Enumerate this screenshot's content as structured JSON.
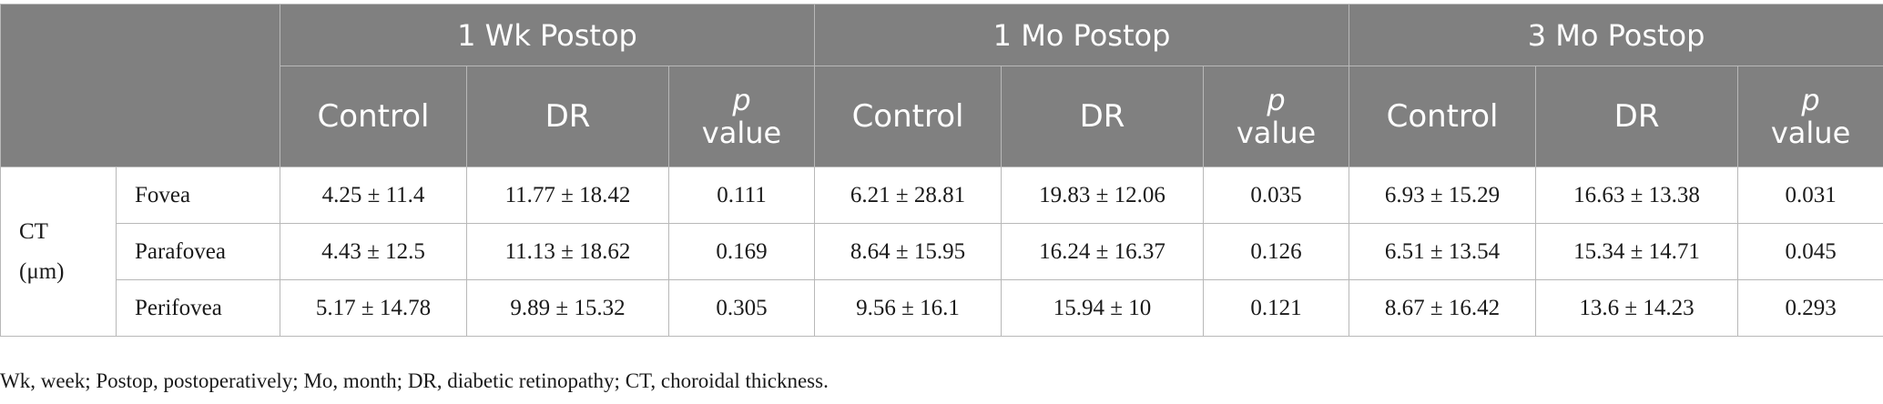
{
  "table": {
    "periods": [
      "1 Wk Postop",
      "1 Mo Postop",
      "3 Mo Postop"
    ],
    "subheaders": {
      "control": "Control",
      "dr": "DR",
      "p": "p",
      "value": "value"
    },
    "parameter": {
      "line1": "CT",
      "line2": "(μm)"
    },
    "rows": [
      {
        "region": "Fovea",
        "cells": [
          "4.25 ± 11.4",
          "11.77 ± 18.42",
          "0.111",
          "6.21 ± 28.81",
          "19.83 ± 12.06",
          "0.035",
          "6.93 ± 15.29",
          "16.63 ± 13.38",
          "0.031"
        ]
      },
      {
        "region": "Parafovea",
        "cells": [
          "4.43 ± 12.5",
          "11.13 ± 18.62",
          "0.169",
          "8.64 ± 15.95",
          "16.24 ± 16.37",
          "0.126",
          "6.51 ± 13.54",
          "15.34 ± 14.71",
          "0.045"
        ]
      },
      {
        "region": "Perifovea",
        "cells": [
          "5.17 ± 14.78",
          "9.89 ± 15.32",
          "0.305",
          "9.56 ± 16.1",
          "15.94 ± 10",
          "0.121",
          "8.67 ± 16.42",
          "13.6 ± 14.23",
          "0.293"
        ]
      }
    ]
  },
  "footnote": "Wk, week; Postop, postoperatively; Mo, month; DR, diabetic retinopathy; CT, choroidal thickness."
}
